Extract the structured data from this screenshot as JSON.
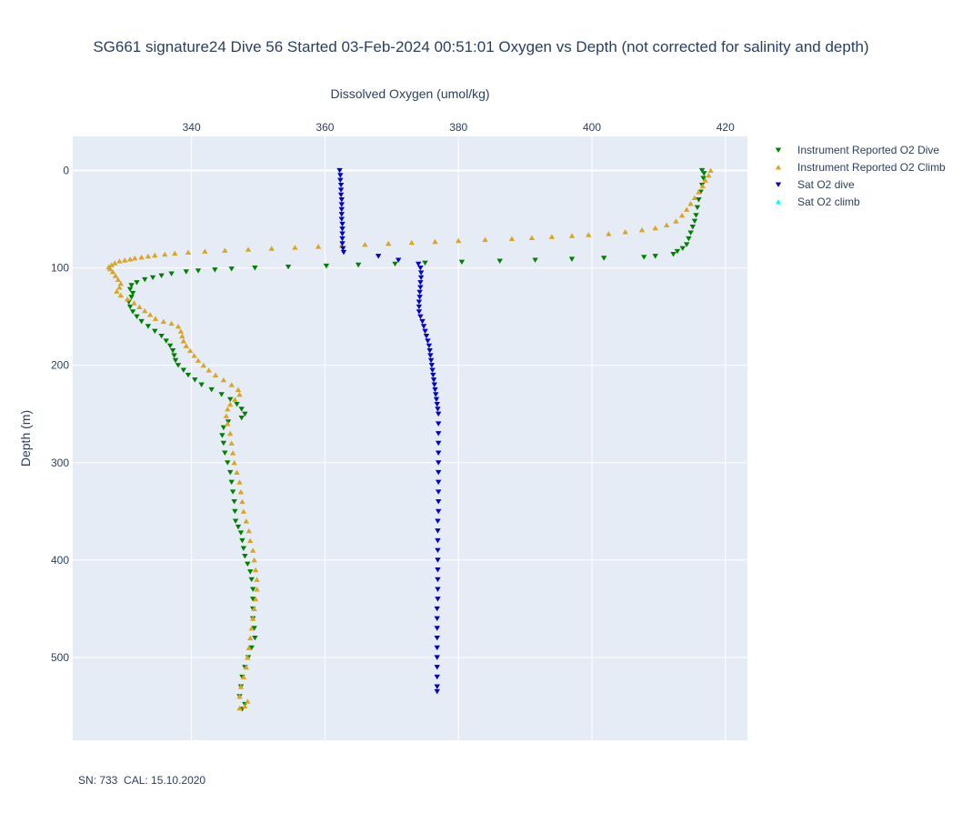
{
  "chart_data": {
    "type": "scatter",
    "title": "SG661 signature24 Dive 56 Started 03-Feb-2024 00:51:01  Oxygen vs Depth (not corrected for salinity and depth)",
    "xlabel": "Dissolved Oxygen (umol/kg)",
    "ylabel": "Depth (m)",
    "x_axis_side": "top",
    "y_reversed": true,
    "xlim": [
      322.2,
      423.3
    ],
    "ylim": [
      585,
      -35
    ],
    "xticks": [
      340,
      360,
      380,
      400,
      420
    ],
    "yticks": [
      0,
      100,
      200,
      300,
      400,
      500
    ],
    "grid": true,
    "legend_position": "top-right",
    "footnote": "SN: 733  CAL: 15.10.2020",
    "series": [
      {
        "name": "Instrument Reported O2 Dive",
        "marker": "triangle-down",
        "color": "#008000",
        "points": [
          [
            416.5,
            0
          ],
          [
            416.8,
            3
          ],
          [
            416.7,
            8
          ],
          [
            416.5,
            15
          ],
          [
            416.3,
            22
          ],
          [
            416.0,
            30
          ],
          [
            415.8,
            38
          ],
          [
            415.6,
            46
          ],
          [
            415.4,
            52
          ],
          [
            415.1,
            58
          ],
          [
            414.8,
            64
          ],
          [
            414.5,
            70
          ],
          [
            414.2,
            76
          ],
          [
            413.6,
            80
          ],
          [
            412.8,
            83
          ],
          [
            412.2,
            86
          ],
          [
            409.5,
            88
          ],
          [
            407.8,
            89
          ],
          [
            401.8,
            90
          ],
          [
            397.0,
            91
          ],
          [
            391.5,
            92
          ],
          [
            386.2,
            93
          ],
          [
            380.5,
            94
          ],
          [
            375.0,
            95
          ],
          [
            370.5,
            96
          ],
          [
            365.0,
            97
          ],
          [
            360.2,
            98
          ],
          [
            354.5,
            99
          ],
          [
            349.5,
            100
          ],
          [
            346.0,
            101
          ],
          [
            343.5,
            102
          ],
          [
            341.0,
            103
          ],
          [
            339.2,
            104
          ],
          [
            337.0,
            106
          ],
          [
            335.5,
            108
          ],
          [
            334.2,
            110
          ],
          [
            333.0,
            112
          ],
          [
            331.8,
            115
          ],
          [
            331.0,
            118
          ],
          [
            330.8,
            122
          ],
          [
            331.2,
            126
          ],
          [
            331.0,
            130
          ],
          [
            330.6,
            135
          ],
          [
            330.8,
            140
          ],
          [
            331.2,
            145
          ],
          [
            331.8,
            150
          ],
          [
            332.5,
            155
          ],
          [
            333.5,
            160
          ],
          [
            334.5,
            165
          ],
          [
            335.5,
            170
          ],
          [
            336.2,
            175
          ],
          [
            336.8,
            180
          ],
          [
            337.2,
            185
          ],
          [
            337.4,
            190
          ],
          [
            337.6,
            195
          ],
          [
            338.0,
            200
          ],
          [
            338.8,
            205
          ],
          [
            339.5,
            210
          ],
          [
            340.5,
            215
          ],
          [
            341.5,
            220
          ],
          [
            343.0,
            225
          ],
          [
            344.5,
            230
          ],
          [
            345.8,
            235
          ],
          [
            346.8,
            240
          ],
          [
            347.5,
            245
          ],
          [
            348.0,
            250
          ],
          [
            347.5,
            254
          ],
          [
            345.5,
            258
          ],
          [
            344.8,
            264
          ],
          [
            344.6,
            272
          ],
          [
            344.8,
            280
          ],
          [
            345.0,
            290
          ],
          [
            345.4,
            300
          ],
          [
            345.8,
            310
          ],
          [
            346.0,
            320
          ],
          [
            346.2,
            330
          ],
          [
            346.4,
            340
          ],
          [
            346.5,
            350
          ],
          [
            346.6,
            360
          ],
          [
            347.0,
            366
          ],
          [
            347.4,
            372
          ],
          [
            347.6,
            380
          ],
          [
            347.8,
            388
          ],
          [
            348.0,
            396
          ],
          [
            348.4,
            404
          ],
          [
            348.8,
            412
          ],
          [
            349.0,
            420
          ],
          [
            349.2,
            430
          ],
          [
            349.2,
            440
          ],
          [
            349.2,
            450
          ],
          [
            349.2,
            460
          ],
          [
            349.4,
            470
          ],
          [
            349.5,
            480
          ],
          [
            349.0,
            490
          ],
          [
            348.5,
            500
          ],
          [
            348.0,
            510
          ],
          [
            347.6,
            520
          ],
          [
            347.4,
            530
          ],
          [
            347.2,
            540
          ],
          [
            348.0,
            548
          ],
          [
            347.6,
            553
          ]
        ]
      },
      {
        "name": "Instrument Reported O2 Climb",
        "marker": "triangle-up",
        "color": "#daa520",
        "points": [
          [
            417.8,
            0
          ],
          [
            417.5,
            5
          ],
          [
            417.0,
            10
          ],
          [
            416.6,
            16
          ],
          [
            416.0,
            22
          ],
          [
            415.4,
            28
          ],
          [
            414.8,
            34
          ],
          [
            414.2,
            40
          ],
          [
            413.5,
            46
          ],
          [
            412.6,
            52
          ],
          [
            411.2,
            56
          ],
          [
            409.5,
            59
          ],
          [
            407.5,
            61
          ],
          [
            405.0,
            63
          ],
          [
            402.5,
            65
          ],
          [
            399.5,
            66
          ],
          [
            397.0,
            67
          ],
          [
            394.0,
            68
          ],
          [
            391.0,
            69
          ],
          [
            388.0,
            70
          ],
          [
            384.0,
            71
          ],
          [
            380.0,
            72
          ],
          [
            376.5,
            73
          ],
          [
            373.0,
            74
          ],
          [
            369.5,
            75
          ],
          [
            366.0,
            76
          ],
          [
            362.5,
            77
          ],
          [
            359.0,
            78
          ],
          [
            355.5,
            79
          ],
          [
            352.0,
            80
          ],
          [
            348.5,
            81
          ],
          [
            345.0,
            82
          ],
          [
            342.0,
            83
          ],
          [
            339.5,
            84
          ],
          [
            337.5,
            85
          ],
          [
            336.0,
            86
          ],
          [
            334.5,
            87
          ],
          [
            333.5,
            88
          ],
          [
            332.5,
            89
          ],
          [
            331.5,
            90
          ],
          [
            330.8,
            91
          ],
          [
            330.0,
            92
          ],
          [
            329.2,
            93
          ],
          [
            328.5,
            95
          ],
          [
            328.0,
            97
          ],
          [
            327.6,
            99
          ],
          [
            327.8,
            101
          ],
          [
            328.2,
            104
          ],
          [
            328.6,
            108
          ],
          [
            329.0,
            112
          ],
          [
            329.4,
            116
          ],
          [
            329.2,
            120
          ],
          [
            328.8,
            124
          ],
          [
            329.4,
            128
          ],
          [
            330.4,
            132
          ],
          [
            331.4,
            136
          ],
          [
            332.2,
            140
          ],
          [
            333.0,
            144
          ],
          [
            333.8,
            148
          ],
          [
            334.6,
            152
          ],
          [
            335.8,
            155
          ],
          [
            337.0,
            157
          ],
          [
            338.0,
            160
          ],
          [
            338.4,
            165
          ],
          [
            338.6,
            170
          ],
          [
            338.8,
            175
          ],
          [
            339.2,
            180
          ],
          [
            339.8,
            185
          ],
          [
            340.4,
            190
          ],
          [
            341.0,
            195
          ],
          [
            341.8,
            200
          ],
          [
            342.6,
            205
          ],
          [
            343.6,
            210
          ],
          [
            344.8,
            215
          ],
          [
            346.0,
            220
          ],
          [
            347.0,
            225
          ],
          [
            347.2,
            230
          ],
          [
            346.5,
            235
          ],
          [
            345.8,
            240
          ],
          [
            345.4,
            245
          ],
          [
            345.2,
            252
          ],
          [
            345.4,
            260
          ],
          [
            345.8,
            270
          ],
          [
            346.0,
            280
          ],
          [
            346.2,
            290
          ],
          [
            346.4,
            300
          ],
          [
            346.8,
            310
          ],
          [
            347.2,
            320
          ],
          [
            347.4,
            330
          ],
          [
            347.6,
            340
          ],
          [
            347.8,
            350
          ],
          [
            348.2,
            360
          ],
          [
            348.6,
            370
          ],
          [
            348.8,
            380
          ],
          [
            349.2,
            390
          ],
          [
            349.4,
            400
          ],
          [
            349.6,
            410
          ],
          [
            349.8,
            420
          ],
          [
            349.8,
            430
          ],
          [
            349.6,
            440
          ],
          [
            349.4,
            450
          ],
          [
            349.2,
            460
          ],
          [
            349.0,
            470
          ],
          [
            348.8,
            480
          ],
          [
            348.6,
            490
          ],
          [
            348.4,
            500
          ],
          [
            348.2,
            510
          ],
          [
            347.8,
            520
          ],
          [
            347.4,
            530
          ],
          [
            347.2,
            540
          ],
          [
            348.4,
            545
          ],
          [
            348.0,
            550
          ],
          [
            347.2,
            552
          ]
        ]
      },
      {
        "name": "Sat O2 dive",
        "marker": "triangle-down",
        "color": "#0000cd",
        "points": [
          [
            362.2,
            0
          ],
          [
            362.3,
            5
          ],
          [
            362.3,
            10
          ],
          [
            362.4,
            15
          ],
          [
            362.4,
            20
          ],
          [
            362.4,
            25
          ],
          [
            362.5,
            30
          ],
          [
            362.5,
            35
          ],
          [
            362.5,
            40
          ],
          [
            362.5,
            45
          ],
          [
            362.5,
            50
          ],
          [
            362.6,
            55
          ],
          [
            362.6,
            60
          ],
          [
            362.6,
            65
          ],
          [
            362.6,
            70
          ],
          [
            362.6,
            75
          ],
          [
            362.7,
            80
          ],
          [
            362.8,
            84
          ],
          [
            368.0,
            88
          ],
          [
            371.0,
            92
          ],
          [
            374.0,
            96
          ],
          [
            374.3,
            100
          ],
          [
            374.4,
            105
          ],
          [
            374.4,
            110
          ],
          [
            374.3,
            115
          ],
          [
            374.3,
            120
          ],
          [
            374.2,
            125
          ],
          [
            374.2,
            130
          ],
          [
            374.1,
            135
          ],
          [
            374.1,
            140
          ],
          [
            374.1,
            145
          ],
          [
            374.3,
            150
          ],
          [
            374.6,
            155
          ],
          [
            374.8,
            160
          ],
          [
            375.0,
            165
          ],
          [
            375.2,
            170
          ],
          [
            375.4,
            175
          ],
          [
            375.6,
            180
          ],
          [
            375.7,
            185
          ],
          [
            375.8,
            190
          ],
          [
            375.9,
            195
          ],
          [
            376.0,
            200
          ],
          [
            376.1,
            205
          ],
          [
            376.2,
            210
          ],
          [
            376.3,
            215
          ],
          [
            376.4,
            220
          ],
          [
            376.5,
            225
          ],
          [
            376.6,
            230
          ],
          [
            376.7,
            235
          ],
          [
            376.8,
            240
          ],
          [
            376.9,
            245
          ],
          [
            377.0,
            250
          ],
          [
            377.0,
            260
          ],
          [
            377.0,
            270
          ],
          [
            377.0,
            280
          ],
          [
            377.0,
            290
          ],
          [
            377.0,
            300
          ],
          [
            377.0,
            310
          ],
          [
            377.0,
            320
          ],
          [
            377.0,
            330
          ],
          [
            377.0,
            340
          ],
          [
            377.0,
            350
          ],
          [
            376.9,
            360
          ],
          [
            376.9,
            370
          ],
          [
            376.9,
            380
          ],
          [
            376.9,
            390
          ],
          [
            376.9,
            400
          ],
          [
            376.9,
            410
          ],
          [
            376.9,
            420
          ],
          [
            376.9,
            430
          ],
          [
            376.9,
            440
          ],
          [
            376.8,
            450
          ],
          [
            376.8,
            460
          ],
          [
            376.8,
            470
          ],
          [
            376.8,
            480
          ],
          [
            376.8,
            490
          ],
          [
            376.8,
            500
          ],
          [
            376.8,
            510
          ],
          [
            376.8,
            520
          ],
          [
            376.8,
            530
          ],
          [
            376.8,
            535
          ]
        ]
      },
      {
        "name": "Sat O2 climb",
        "marker": "triangle-up",
        "color": "#00ffff",
        "points": []
      }
    ]
  }
}
